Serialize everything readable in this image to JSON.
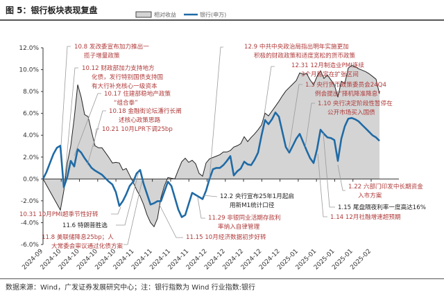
{
  "title": "图 5：银行板块表现复盘",
  "source": "数据来源：Wind，广发证券发展研究中心；注：银行指数为 Wind 行业指数:银行",
  "chart_data": {
    "type": "line",
    "title": "",
    "xlabel": "",
    "ylabel": "",
    "ylim": [
      -6,
      12
    ],
    "y_ticks": [
      "-6.0%",
      "-4.0%",
      "-2.0%",
      "0.0%",
      "2.0%",
      "4.0%",
      "6.0%",
      "8.0%",
      "10.0%",
      "12.0%"
    ],
    "x_ticks": [
      "2024-09",
      "2024-10",
      "2024-10",
      "2024-10",
      "2024-10",
      "2024-11",
      "2024-11",
      "2024-11",
      "2024-11",
      "2024-12",
      "2024-12",
      "2024-12",
      "2024-12",
      "2024-12",
      "2025-01",
      "2025-01",
      "2025-01",
      "2025-01",
      "2025-02"
    ],
    "legend_placement": "top-center",
    "colors": {
      "relative": "#d4d4d4",
      "relative_line": "#222222",
      "bank": "#1f6aa5",
      "annotation_red": "#b03a3a"
    },
    "series": [
      {
        "name": "相对收益",
        "style": "area",
        "values": [
          0,
          -0.57,
          -1.14,
          -1.71,
          -2.28,
          -2.85,
          -1.08,
          1.46,
          3.04,
          5.58,
          8.62,
          7.48,
          5.89,
          5.7,
          4.31,
          3.04,
          2.85,
          2.85,
          2.41,
          1.96,
          1.46,
          1.52,
          1.46,
          0.82,
          0.95,
          0.32,
          -0.32,
          -1.01,
          -1.58,
          -2.34,
          -3.3,
          -3.99,
          -4.37,
          -3.61,
          -1.71,
          -0.63,
          0.13,
          0.06,
          0,
          0.82,
          1.58,
          1.9,
          1.52,
          1.71,
          1.39,
          0.51,
          0.25,
          1.46,
          1.84,
          1.96,
          2.09,
          2.22,
          2.47,
          2.47,
          2.6,
          2.92,
          3.04,
          3.23,
          3.87,
          3.42,
          3.8,
          4.12,
          4.5,
          4.94,
          6.02,
          5.77,
          6.21,
          6.65,
          7.1,
          7.6,
          8.05,
          8.37,
          8.68,
          9.0,
          9.7,
          9.57,
          9.63,
          9.06,
          8.62,
          9.38,
          9.89,
          9.19,
          9.51,
          9.06,
          8.62,
          7.48,
          8.94,
          8.75,
          10.14,
          10.39,
          10.27,
          10.08,
          9.95,
          9.82,
          9.63,
          9.38,
          9.13,
          7.79
        ]
      },
      {
        "name": "银行(申万)",
        "style": "line",
        "values": [
          0,
          0.63,
          1.46,
          2.28,
          2.85,
          3.04,
          -0.76,
          0.19,
          1.65,
          1.14,
          2.72,
          2.41,
          1.9,
          1.46,
          1.01,
          0.76,
          0.57,
          0.38,
          0.06,
          -0.25,
          -0.51,
          -1.2,
          -2.47,
          -2.03,
          -1.39,
          -0.63,
          -0.25,
          0.51,
          0.82,
          -0.44,
          -1.39,
          -2.34,
          -2.22,
          -2.03,
          -2.03,
          -1.14,
          -0.25,
          -0.63,
          -1.71,
          -2.79,
          -3.49,
          -3.3,
          -2.28,
          -1.27,
          -1.46,
          -1.65,
          -1.84,
          -1.08,
          0,
          0.89,
          1.01,
          1.01,
          1.27,
          1.65,
          2.09,
          0.32,
          0.7,
          0.95,
          1.58,
          1.33,
          1.27,
          1.77,
          2.41,
          3.99,
          5.39,
          5.01,
          5.45,
          6.08,
          5.7,
          4.31,
          2.92,
          2.41,
          3.04,
          3.68,
          4.12,
          3.36,
          2.6,
          1.9,
          1.46,
          2.72,
          4.5,
          4.12,
          3.8,
          3.74,
          3.55,
          1.65,
          3.68,
          4.82,
          5.51,
          5.58,
          5.45,
          5.26,
          4.94,
          4.63,
          4.31,
          3.99,
          3.8,
          3.49
        ]
      }
    ],
    "annotations": [
      {
        "color": "red",
        "lines": [
          "10.8 发改委宣布加力推出一",
          "揽子增量政策"
        ]
      },
      {
        "color": "red",
        "lines": [
          "10.12 财政部加力支持地方",
          "化债，发行特别国债支持国",
          "有大行补充核心一级资本"
        ]
      },
      {
        "color": "red",
        "lines": [
          "10.17 住建部稳地产政策",
          "“组合拳”"
        ]
      },
      {
        "color": "red",
        "lines": [
          "10.18 金融街论坛潘行长阐",
          "述核心政策思路"
        ]
      },
      {
        "color": "red",
        "lines": [
          "10.21 10月LPR下调25bp"
        ]
      },
      {
        "color": "red",
        "lines": [
          "12.9 中共中央政治局指出明年实施更加",
          "积极的财政政策和适度宽松的货币政策"
        ]
      },
      {
        "color": "red",
        "lines": [
          "12.31 12月制造业PMI连续",
          "3个月稳定在扩张区间"
        ]
      },
      {
        "color": "red",
        "lines": [
          "1.3 央行货币政策委员会24Q4",
          "例会提出“择机降准降息”"
        ]
      },
      {
        "color": "red",
        "lines": [
          "1.10 央行决定阶段性暂停在",
          "公开市场买入国债"
        ]
      },
      {
        "color": "red",
        "lines": [
          "1.22 六部门印发中长期资金",
          "入市方案"
        ]
      },
      {
        "color": "black",
        "lines": [
          "1.15 尾盘隔夜利率一度高达16%"
        ]
      },
      {
        "color": "red",
        "lines": [
          "1.14 12月社融增速超预期"
        ]
      },
      {
        "color": "black",
        "lines": [
          "12.2 央行宣布25年1月起启",
          "用新M1统计口径"
        ]
      },
      {
        "color": "red",
        "lines": [
          "11.29 非银同业活期存款利",
          "率纳入自律管理"
        ]
      },
      {
        "color": "red",
        "lines": [
          "11.15 10月经济数据初步好转"
        ]
      },
      {
        "color": "red",
        "lines": [
          "10.31 10月PMI超季节性好转"
        ]
      },
      {
        "color": "black",
        "lines": [
          "11.6 特朗普胜选"
        ]
      },
      {
        "color": "red",
        "lines": [
          "11.8 美联储降息25bp；人",
          "大常委会审议通过化债方案"
        ]
      }
    ]
  }
}
